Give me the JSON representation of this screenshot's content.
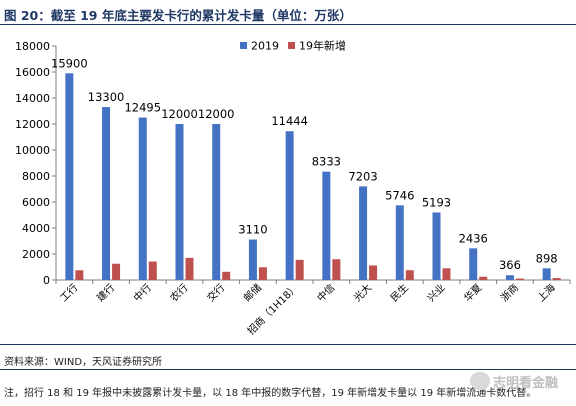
{
  "header": {
    "title": "图 20：截至 19 年底主要发卡行的累计发卡量（单位：万张）"
  },
  "footer": {
    "source": "资料来源：WIND，天风证券研究所",
    "note": "注，招行 18 和 19 年报中未披露累计发卡量，以 18 年中报的数字代替，19 年新增发卡量以 19 年新增流通卡数代替。",
    "watermark": "志明看金融"
  },
  "chart_data": {
    "type": "bar",
    "categories": [
      "工行",
      "建行",
      "中行",
      "农行",
      "交行",
      "邮储",
      "招商（1H18）",
      "中信",
      "光大",
      "民生",
      "兴业",
      "华夏",
      "浙商",
      "上海"
    ],
    "series": [
      {
        "name": "2019",
        "color": "#4472c4",
        "values": [
          15900,
          13300,
          12495,
          12000,
          12000,
          3110,
          11444,
          8333,
          7203,
          5746,
          5193,
          2436,
          366,
          898
        ]
      },
      {
        "name": "19年新增",
        "color": "#c0504d",
        "values": [
          750,
          1250,
          1420,
          1700,
          630,
          980,
          1550,
          1600,
          1120,
          750,
          900,
          250,
          110,
          150
        ]
      }
    ],
    "data_labels": [
      "15900",
      "13300",
      "12495",
      "12000",
      "12000",
      "3110",
      "11444",
      "8333",
      "7203",
      "5746",
      "5193",
      "2436",
      "366",
      "898"
    ],
    "y_ticks": [
      "0",
      "2000",
      "4000",
      "6000",
      "8000",
      "10000",
      "12000",
      "14000",
      "16000",
      "18000"
    ],
    "ylim": [
      0,
      18000
    ],
    "legend_position": "top-center",
    "grid": false
  }
}
